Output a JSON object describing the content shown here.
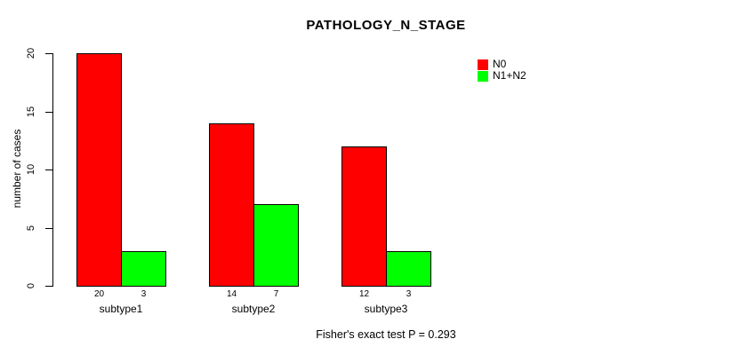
{
  "chart_data": {
    "type": "bar",
    "title": "PATHOLOGY_N_STAGE",
    "ylabel": "number of cases",
    "xlabel": "",
    "ylim": [
      0,
      20
    ],
    "yticks": [
      0,
      5,
      10,
      15,
      20
    ],
    "categories": [
      "subtype1",
      "subtype2",
      "subtype3"
    ],
    "series": [
      {
        "name": "N0",
        "color": "#ff0000",
        "values": [
          20,
          14,
          12
        ]
      },
      {
        "name": "N1+N2",
        "color": "#00ff00",
        "values": [
          3,
          7,
          3
        ]
      }
    ],
    "show_value_labels_under_bars": true,
    "bar_border_color": "#000000",
    "grid": false,
    "legend_position": "top-right",
    "annotation": "Fisher's exact test P = 0.293"
  }
}
